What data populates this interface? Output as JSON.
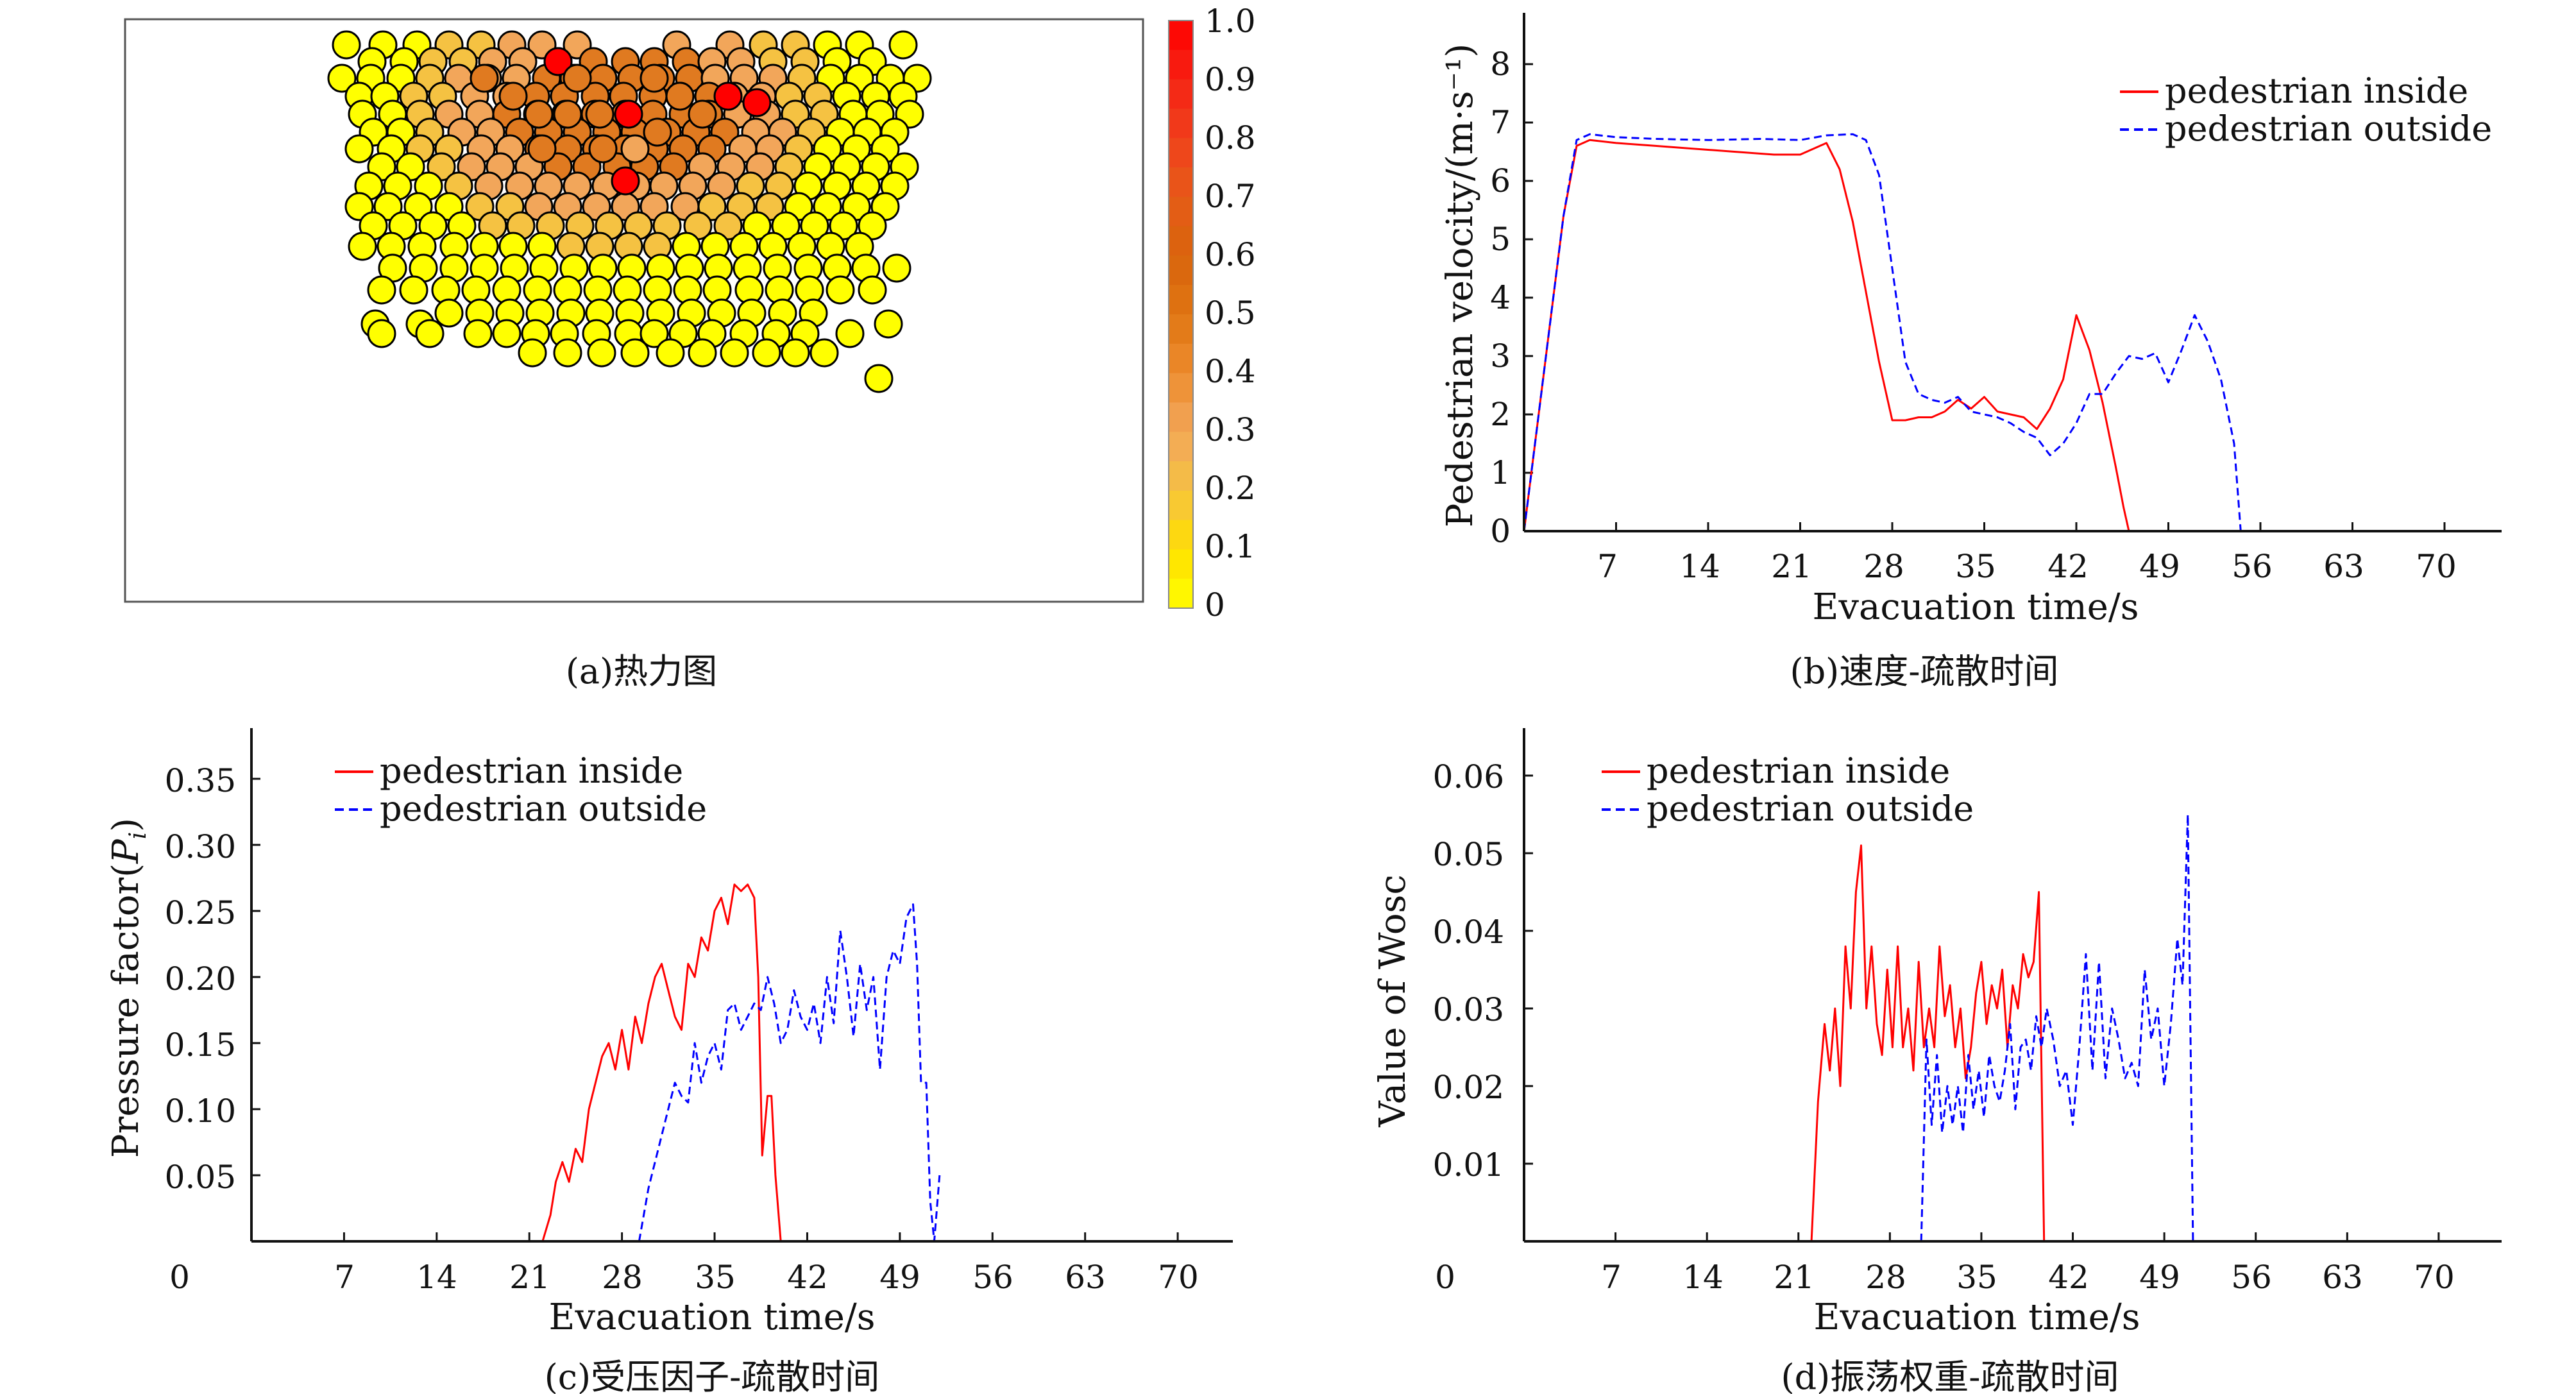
{
  "chart_data": [
    {
      "panel": "a",
      "type": "heatmap",
      "caption": "(a)热力图",
      "colorbar": {
        "ticks": [
          "1.0",
          "0.9",
          "0.8",
          "0.7",
          "0.6",
          "0.5",
          "0.4",
          "0.3",
          "0.2",
          "0.1",
          "0"
        ],
        "range": [
          0,
          1
        ],
        "colors": [
          "#ffff00",
          "#ffdf00",
          "#f5c242",
          "#f2a65a",
          "#ed8c2e",
          "#e07512",
          "#d8640c",
          "#e65a18",
          "#f0401c",
          "#f52314",
          "#ff0000"
        ]
      },
      "circle_colors": {
        "low": "#ffff00",
        "mid": "#f2a65a",
        "high": "#e07a20",
        "max": "#ff0000",
        "outline": "#000000"
      }
    },
    {
      "panel": "b",
      "type": "line",
      "caption": "(b)速度-疏散时间",
      "xlabel": "Evacuation time/s",
      "ylabel": "Pedestrian velocity/(m·s⁻¹)",
      "xlim": [
        0,
        75
      ],
      "ylim": [
        0,
        8.7
      ],
      "xticks": [
        "7",
        "14",
        "21",
        "28",
        "35",
        "42",
        "49",
        "56",
        "63",
        "70"
      ],
      "yticks": [
        "0",
        "1",
        "2",
        "3",
        "4",
        "5",
        "6",
        "7",
        "8"
      ],
      "legend_position": "top-right",
      "series": [
        {
          "name": "pedestrian inside",
          "color": "#ff0000",
          "dash": "solid",
          "x": [
            0,
            1,
            2,
            3,
            4,
            5,
            7,
            10,
            13,
            16,
            19,
            21,
            23,
            24,
            25,
            26,
            27,
            28,
            29,
            30,
            31,
            32,
            33,
            34,
            35,
            36,
            37,
            38,
            39,
            40,
            41,
            42,
            43,
            44,
            45,
            45.6,
            46
          ],
          "y": [
            0,
            1.8,
            3.6,
            5.4,
            6.6,
            6.7,
            6.65,
            6.6,
            6.55,
            6.5,
            6.45,
            6.45,
            6.65,
            6.2,
            5.3,
            4.1,
            2.9,
            1.9,
            1.9,
            1.95,
            1.95,
            2.05,
            2.25,
            2.1,
            2.3,
            2.05,
            2.0,
            1.95,
            1.75,
            2.1,
            2.6,
            3.7,
            3.1,
            2.2,
            1.1,
            0.4,
            0
          ]
        },
        {
          "name": "pedestrian outside",
          "color": "#0000ff",
          "dash": "dashed",
          "x": [
            0,
            1,
            2,
            3,
            4,
            5,
            7,
            10,
            14,
            18,
            21,
            23,
            25,
            26,
            27,
            28,
            29,
            30,
            31,
            32,
            33,
            34,
            35,
            36,
            37,
            38,
            39,
            40,
            41,
            42,
            43,
            44,
            45,
            46,
            47,
            48,
            49,
            50,
            51,
            52,
            53,
            54,
            54.5
          ],
          "y": [
            0,
            1.8,
            3.6,
            5.4,
            6.7,
            6.8,
            6.75,
            6.72,
            6.7,
            6.72,
            6.7,
            6.78,
            6.8,
            6.7,
            6.1,
            4.5,
            2.9,
            2.35,
            2.25,
            2.2,
            2.3,
            2.05,
            2.0,
            1.95,
            1.85,
            1.7,
            1.6,
            1.3,
            1.5,
            1.85,
            2.35,
            2.35,
            2.7,
            3.0,
            2.95,
            3.05,
            2.55,
            3.1,
            3.7,
            3.25,
            2.6,
            1.5,
            0
          ]
        }
      ]
    },
    {
      "panel": "c",
      "type": "line",
      "caption": "(c)受压因子-疏散时间",
      "xlabel": "Evacuation time/s",
      "ylabel_main": "Pressure factor(",
      "ylabel_var": "P",
      "ylabel_sub": "i",
      "ylabel_close": ")",
      "xlim": [
        0,
        75
      ],
      "ylim": [
        0,
        0.39
      ],
      "x_origin_label": "0",
      "xticks": [
        "7",
        "14",
        "21",
        "28",
        "35",
        "42",
        "49",
        "56",
        "63",
        "70"
      ],
      "yticks": [
        "0.05",
        "0.10",
        "0.15",
        "0.20",
        "0.25",
        "0.30",
        "0.35"
      ],
      "legend_position": "top-left",
      "series": [
        {
          "name": "pedestrian inside",
          "color": "#ff0000",
          "dash": "solid",
          "x": [
            22,
            22.6,
            23,
            23.5,
            24,
            24.5,
            25,
            25.5,
            26,
            26.5,
            27,
            27.5,
            28,
            28.5,
            29,
            29.5,
            30,
            30.5,
            31,
            31.5,
            32,
            32.5,
            33,
            33.5,
            34,
            34.5,
            35,
            35.5,
            36,
            36.5,
            37,
            37.5,
            38,
            38.3,
            38.6,
            39,
            39.3,
            39.6,
            40
          ],
          "y": [
            0,
            0.02,
            0.045,
            0.06,
            0.045,
            0.07,
            0.06,
            0.1,
            0.12,
            0.14,
            0.15,
            0.13,
            0.16,
            0.13,
            0.17,
            0.15,
            0.18,
            0.2,
            0.21,
            0.19,
            0.17,
            0.16,
            0.21,
            0.2,
            0.23,
            0.22,
            0.25,
            0.26,
            0.24,
            0.27,
            0.265,
            0.27,
            0.26,
            0.2,
            0.065,
            0.11,
            0.11,
            0.05,
            0
          ]
        },
        {
          "name": "pedestrian outside",
          "color": "#0000ff",
          "dash": "dashed",
          "x": [
            29.3,
            30,
            30.5,
            31,
            31.5,
            32,
            32.5,
            33,
            33.5,
            34,
            34.5,
            35,
            35.5,
            36,
            36.5,
            37,
            37.5,
            38,
            38.5,
            39,
            39.5,
            40,
            40.5,
            41,
            41.5,
            42,
            42.5,
            43,
            43.5,
            44,
            44.5,
            45,
            45.5,
            46,
            46.5,
            47,
            47.5,
            48,
            48.5,
            49,
            49.5,
            50,
            50.3,
            50.6,
            51,
            51.3,
            51.6,
            52
          ],
          "y": [
            0,
            0.04,
            0.06,
            0.08,
            0.1,
            0.12,
            0.11,
            0.105,
            0.15,
            0.12,
            0.14,
            0.15,
            0.13,
            0.175,
            0.18,
            0.16,
            0.17,
            0.18,
            0.175,
            0.2,
            0.18,
            0.15,
            0.16,
            0.19,
            0.17,
            0.16,
            0.18,
            0.15,
            0.2,
            0.165,
            0.235,
            0.2,
            0.155,
            0.21,
            0.175,
            0.2,
            0.13,
            0.2,
            0.22,
            0.21,
            0.245,
            0.255,
            0.21,
            0.12,
            0.12,
            0.03,
            0,
            0.05
          ]
        }
      ]
    },
    {
      "panel": "d",
      "type": "line",
      "caption": "(d)振荡权重-疏散时间",
      "xlabel": "Evacuation time/s",
      "ylabel": "Value of Wosc",
      "xlim": [
        0,
        75
      ],
      "ylim": [
        0,
        0.067
      ],
      "x_origin_label": "0",
      "xticks": [
        "7",
        "14",
        "21",
        "28",
        "35",
        "42",
        "49",
        "56",
        "63",
        "70"
      ],
      "yticks": [
        "0.01",
        "0.02",
        "0.03",
        "0.04",
        "0.05",
        "0.06"
      ],
      "legend_position": "top-left",
      "series": [
        {
          "name": "pedestrian inside",
          "color": "#ff0000",
          "dash": "solid",
          "x": [
            22,
            22.5,
            23,
            23.4,
            23.8,
            24.2,
            24.6,
            25,
            25.4,
            25.8,
            26.2,
            26.6,
            27,
            27.4,
            27.8,
            28.2,
            28.6,
            29,
            29.4,
            29.8,
            30.2,
            30.6,
            31,
            31.4,
            31.8,
            32.2,
            32.6,
            33,
            33.4,
            33.8,
            34.2,
            34.6,
            35,
            35.4,
            35.8,
            36.2,
            36.6,
            37,
            37.4,
            37.8,
            38.2,
            38.6,
            39,
            39.4,
            39.8
          ],
          "y": [
            0,
            0.018,
            0.028,
            0.022,
            0.03,
            0.02,
            0.038,
            0.03,
            0.045,
            0.051,
            0.03,
            0.038,
            0.028,
            0.024,
            0.035,
            0.025,
            0.038,
            0.025,
            0.03,
            0.022,
            0.036,
            0.025,
            0.03,
            0.025,
            0.038,
            0.029,
            0.033,
            0.025,
            0.03,
            0.021,
            0.025,
            0.032,
            0.036,
            0.028,
            0.033,
            0.03,
            0.035,
            0.025,
            0.033,
            0.03,
            0.037,
            0.034,
            0.036,
            0.045,
            0
          ]
        },
        {
          "name": "pedestrian outside",
          "color": "#0000ff",
          "dash": "dashed",
          "x": [
            30.4,
            30.8,
            31.2,
            31.6,
            32,
            32.4,
            32.8,
            33.2,
            33.6,
            34,
            34.4,
            34.8,
            35.2,
            35.6,
            36,
            36.4,
            36.8,
            37.2,
            37.6,
            38,
            38.4,
            38.8,
            39.2,
            39.6,
            40,
            40.5,
            41,
            41.5,
            42,
            42.5,
            43,
            43.5,
            44,
            44.5,
            45,
            45.5,
            46,
            46.5,
            47,
            47.5,
            48,
            48.5,
            49,
            49.5,
            50,
            50.4,
            50.8,
            51.2
          ],
          "y": [
            0,
            0.026,
            0.015,
            0.024,
            0.014,
            0.02,
            0.015,
            0.02,
            0.014,
            0.024,
            0.017,
            0.022,
            0.016,
            0.024,
            0.02,
            0.018,
            0.022,
            0.028,
            0.017,
            0.025,
            0.026,
            0.022,
            0.029,
            0.025,
            0.03,
            0.026,
            0.02,
            0.022,
            0.015,
            0.025,
            0.037,
            0.022,
            0.036,
            0.021,
            0.03,
            0.026,
            0.021,
            0.023,
            0.02,
            0.035,
            0.026,
            0.03,
            0.02,
            0.028,
            0.039,
            0.033,
            0.055,
            0
          ]
        }
      ]
    }
  ]
}
